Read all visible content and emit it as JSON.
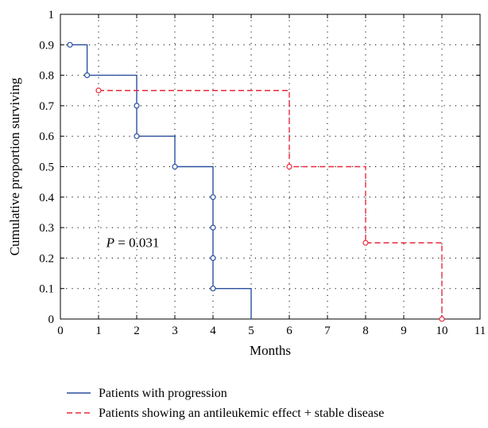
{
  "chart_data": {
    "type": "line",
    "subtype": "kaplan-meier-step",
    "xlabel": "Months",
    "ylabel": "Cumulative proportion surviving",
    "xlim": [
      0,
      11
    ],
    "ylim": [
      0,
      1
    ],
    "xticks": [
      "0",
      "1",
      "2",
      "3",
      "4",
      "5",
      "6",
      "7",
      "8",
      "9",
      "10",
      "11"
    ],
    "yticks": [
      "0",
      "0.1",
      "0.2",
      "0.3",
      "0.4",
      "0.5",
      "0.6",
      "0.7",
      "0.8",
      "0.9",
      "1"
    ],
    "grid": "dotted",
    "legend_position": "bottom",
    "annotation": {
      "prefix": "P",
      "text": " = 0.031",
      "x": 1.2,
      "y": 0.25
    },
    "series": [
      {
        "name": "Patients with progression",
        "color": "#2b4fa0",
        "dash": "solid",
        "steps": [
          [
            0.2,
            0.9
          ],
          [
            0.7,
            0.9
          ],
          [
            0.7,
            0.8
          ],
          [
            2,
            0.8
          ],
          [
            2,
            0.6
          ],
          [
            3,
            0.6
          ],
          [
            3,
            0.5
          ],
          [
            4,
            0.5
          ],
          [
            4,
            0.1
          ],
          [
            5,
            0.1
          ],
          [
            5,
            0
          ]
        ],
        "censored": [
          [
            0.25,
            0.9
          ],
          [
            0.7,
            0.8
          ],
          [
            2,
            0.7
          ],
          [
            2,
            0.6
          ],
          [
            3,
            0.5
          ],
          [
            4,
            0.4
          ],
          [
            4,
            0.3
          ],
          [
            4,
            0.2
          ],
          [
            4,
            0.1
          ]
        ]
      },
      {
        "name": "Patients showing an antileukemic effect + stable disease",
        "color": "#e8283c",
        "dash": "dashed",
        "steps": [
          [
            1,
            0.75
          ],
          [
            6,
            0.75
          ],
          [
            6,
            0.5
          ],
          [
            8,
            0.5
          ],
          [
            8,
            0.25
          ],
          [
            10,
            0.25
          ],
          [
            10,
            0
          ]
        ],
        "censored": [
          [
            1,
            0.75
          ],
          [
            6,
            0.5
          ],
          [
            8,
            0.25
          ],
          [
            10,
            0
          ]
        ]
      }
    ]
  }
}
